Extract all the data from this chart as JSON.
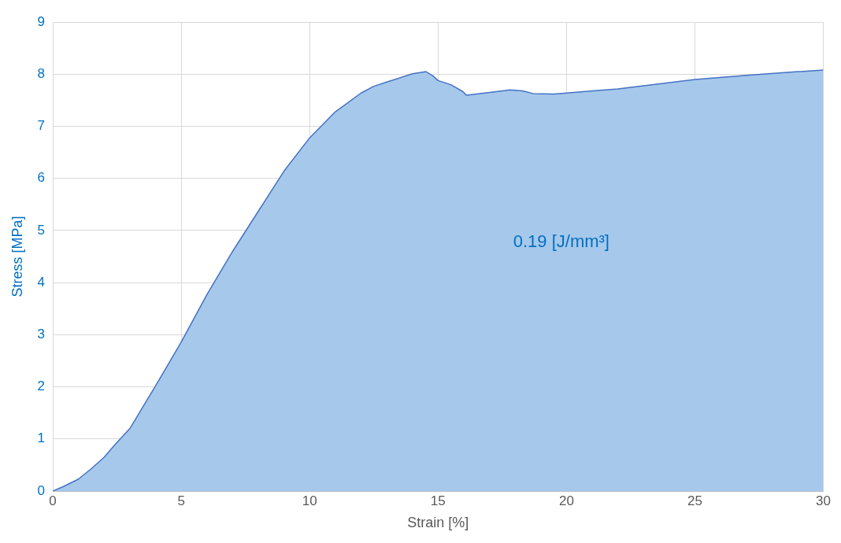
{
  "chart_data": {
    "type": "area",
    "xlabel": "Strain [%]",
    "ylabel": "Stress [MPa]",
    "annotations": [
      "0.19 [J/mm³]"
    ],
    "xlim": [
      0,
      30
    ],
    "xticks": [
      0,
      5,
      10,
      15,
      20,
      25,
      30
    ],
    "ylim": [
      0,
      9
    ],
    "yticks": [
      0,
      1,
      2,
      3,
      4,
      5,
      6,
      7,
      8,
      9
    ],
    "grid": true,
    "legend": false,
    "marker": "none",
    "line_style": "solid",
    "series": [
      {
        "color": "#a6c8eb",
        "x": [
          0,
          0.43,
          1.0,
          1.5,
          2.0,
          2.4,
          3.0,
          4.0,
          5.0,
          6.0,
          7.0,
          8.0,
          9.0,
          10.0,
          11.0,
          12.0,
          12.5,
          13.0,
          14.0,
          14.53,
          14.8,
          15.0,
          15.5,
          15.96,
          16.1,
          17.0,
          17.8,
          18.3,
          18.7,
          19.5,
          20.0,
          22.0,
          25.0,
          27.0,
          29.0,
          30.0
        ],
        "values": [
          0,
          0.09,
          0.23,
          0.43,
          0.65,
          0.88,
          1.2,
          2.02,
          2.86,
          3.77,
          4.6,
          5.37,
          6.14,
          6.78,
          7.28,
          7.64,
          7.77,
          7.85,
          8.01,
          8.05,
          7.97,
          7.88,
          7.8,
          7.67,
          7.6,
          7.65,
          7.7,
          7.68,
          7.63,
          7.62,
          7.64,
          7.72,
          7.9,
          7.98,
          8.05,
          8.08
        ]
      }
    ]
  }
}
